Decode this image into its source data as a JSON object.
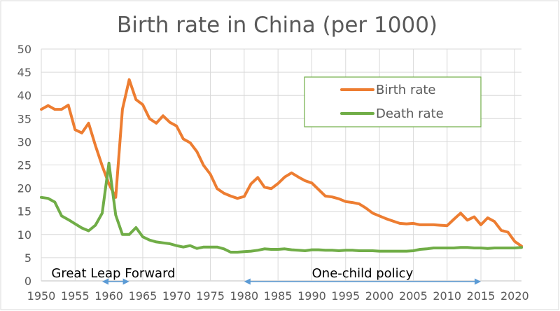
{
  "chart_data": {
    "type": "line",
    "title": "Birth rate in China (per 1000)",
    "xlim": [
      1950,
      2021
    ],
    "ylim": [
      0,
      50
    ],
    "x_ticks": [
      1950,
      1955,
      1960,
      1965,
      1970,
      1975,
      1980,
      1985,
      1990,
      1995,
      2000,
      2005,
      2010,
      2015,
      2020
    ],
    "y_ticks": [
      0,
      5,
      10,
      15,
      20,
      25,
      30,
      35,
      40,
      45,
      50
    ],
    "grid": true,
    "legend_position": "top-right",
    "series": [
      {
        "name": "Birth rate",
        "color": "#ED7D31",
        "x": [
          1950,
          1951,
          1952,
          1953,
          1954,
          1955,
          1956,
          1957,
          1958,
          1959,
          1960,
          1961,
          1962,
          1963,
          1964,
          1965,
          1966,
          1967,
          1968,
          1969,
          1970,
          1971,
          1972,
          1973,
          1974,
          1975,
          1976,
          1977,
          1978,
          1979,
          1980,
          1981,
          1982,
          1983,
          1984,
          1985,
          1986,
          1987,
          1988,
          1989,
          1990,
          1991,
          1992,
          1993,
          1994,
          1995,
          1996,
          1997,
          1998,
          1999,
          2000,
          2001,
          2002,
          2003,
          2004,
          2005,
          2006,
          2007,
          2008,
          2009,
          2010,
          2011,
          2012,
          2013,
          2014,
          2015,
          2016,
          2017,
          2018,
          2019,
          2020,
          2021
        ],
        "values": [
          37,
          37.8,
          37,
          37,
          37.9,
          32.6,
          31.9,
          34,
          29.2,
          24.8,
          20.9,
          18,
          37,
          43.4,
          39.1,
          38,
          35,
          34,
          35.6,
          34.2,
          33.4,
          30.6,
          29.8,
          27.9,
          24.9,
          23,
          19.9,
          18.9,
          18.3,
          17.8,
          18.2,
          20.9,
          22.3,
          20.2,
          19.9,
          21,
          22.4,
          23.3,
          22.4,
          21.6,
          21.1,
          19.7,
          18.3,
          18.1,
          17.7,
          17.1,
          16.9,
          16.6,
          15.7,
          14.6,
          14,
          13.4,
          12.9,
          12.4,
          12.3,
          12.4,
          12.1,
          12.1,
          12.1,
          12,
          11.9,
          13.3,
          14.6,
          13.1,
          13.8,
          12.1,
          13.6,
          12.8,
          10.9,
          10.5,
          8.5,
          7.5
        ]
      },
      {
        "name": "Death rate",
        "color": "#70AD47",
        "x": [
          1950,
          1951,
          1952,
          1953,
          1954,
          1955,
          1956,
          1957,
          1958,
          1959,
          1960,
          1961,
          1962,
          1963,
          1964,
          1965,
          1966,
          1967,
          1968,
          1969,
          1970,
          1971,
          1972,
          1973,
          1974,
          1975,
          1976,
          1977,
          1978,
          1979,
          1980,
          1981,
          1982,
          1983,
          1984,
          1985,
          1986,
          1987,
          1988,
          1989,
          1990,
          1991,
          1992,
          1993,
          1994,
          1995,
          1996,
          1997,
          1998,
          1999,
          2000,
          2001,
          2002,
          2003,
          2004,
          2005,
          2006,
          2007,
          2008,
          2009,
          2010,
          2011,
          2012,
          2013,
          2014,
          2015,
          2016,
          2017,
          2018,
          2019,
          2020,
          2021
        ],
        "values": [
          18,
          17.8,
          17,
          14,
          13.2,
          12.3,
          11.4,
          10.8,
          12,
          14.6,
          25.4,
          14.2,
          10,
          10,
          11.5,
          9.5,
          8.8,
          8.4,
          8.2,
          8,
          7.6,
          7.3,
          7.6,
          7,
          7.3,
          7.3,
          7.3,
          6.9,
          6.2,
          6.2,
          6.3,
          6.4,
          6.6,
          6.9,
          6.8,
          6.8,
          6.9,
          6.7,
          6.6,
          6.5,
          6.7,
          6.7,
          6.6,
          6.6,
          6.5,
          6.6,
          6.6,
          6.5,
          6.5,
          6.5,
          6.4,
          6.4,
          6.4,
          6.4,
          6.4,
          6.5,
          6.8,
          6.9,
          7.1,
          7.1,
          7.1,
          7.1,
          7.2,
          7.2,
          7.1,
          7.1,
          7,
          7.1,
          7.1,
          7.1,
          7.1,
          7.2
        ]
      }
    ],
    "annotations": [
      {
        "text": "Great Leap Forward",
        "x_range": [
          1959,
          1963
        ]
      },
      {
        "text": "One-child policy",
        "x_range": [
          1980,
          2015
        ]
      }
    ]
  }
}
